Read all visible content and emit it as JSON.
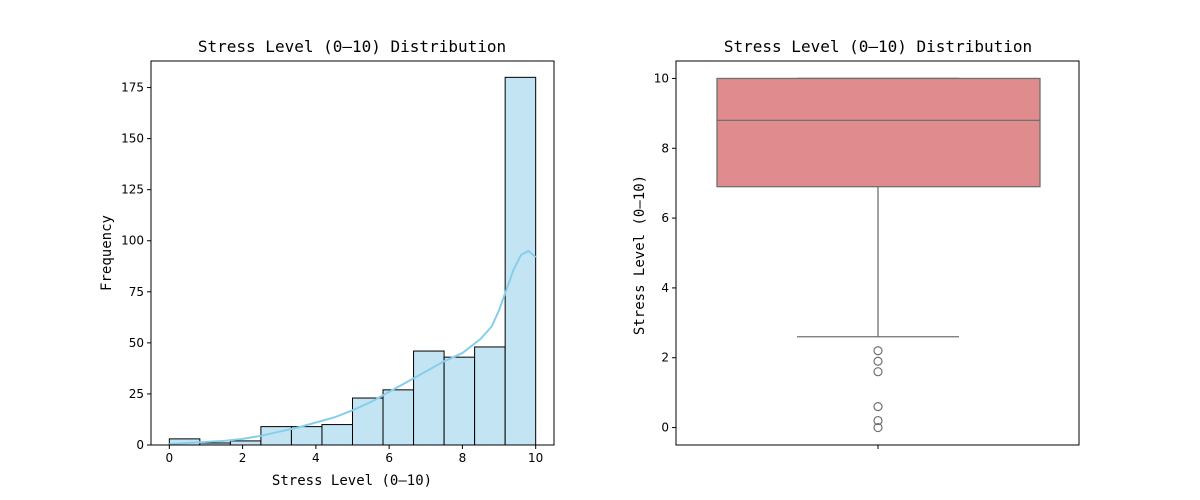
{
  "colors": {
    "hist_bar_fill": "#c3e5f3",
    "hist_bar_edge": "#000000",
    "kde_line": "#87ceeb",
    "box_fill": "#e08b8d",
    "box_line": "#707070",
    "axes": "#000000"
  },
  "chart_data": [
    {
      "type": "bar",
      "subtype": "histogram_with_kde",
      "title": "Stress Level (0–10) Distribution",
      "xlabel": "Stress Level (0–10)",
      "ylabel": "Frequency",
      "xlim": [
        -0.5,
        10.5
      ],
      "ylim": [
        0,
        188
      ],
      "xticks": [
        0,
        2,
        4,
        6,
        8,
        10
      ],
      "yticks": [
        0,
        25,
        50,
        75,
        100,
        125,
        150,
        175
      ],
      "bins": [
        {
          "x0": 0.0,
          "x1": 0.8333,
          "count": 3
        },
        {
          "x0": 0.8333,
          "x1": 1.6667,
          "count": 1
        },
        {
          "x0": 1.6667,
          "x1": 2.5,
          "count": 2
        },
        {
          "x0": 2.5,
          "x1": 3.3333,
          "count": 9
        },
        {
          "x0": 3.3333,
          "x1": 4.1667,
          "count": 9
        },
        {
          "x0": 4.1667,
          "x1": 5.0,
          "count": 10
        },
        {
          "x0": 5.0,
          "x1": 5.8333,
          "count": 23
        },
        {
          "x0": 5.8333,
          "x1": 6.6667,
          "count": 27
        },
        {
          "x0": 6.6667,
          "x1": 7.5,
          "count": 46
        },
        {
          "x0": 7.5,
          "x1": 8.3333,
          "count": 43
        },
        {
          "x0": 8.3333,
          "x1": 9.1667,
          "count": 48
        },
        {
          "x0": 9.1667,
          "x1": 10.0,
          "count": 180
        }
      ],
      "kde": {
        "x": [
          0,
          0.5,
          1,
          1.5,
          2,
          2.5,
          3,
          3.5,
          4,
          4.5,
          5,
          5.5,
          6,
          6.5,
          7,
          7.5,
          8,
          8.5,
          8.8,
          9.0,
          9.2,
          9.4,
          9.6,
          9.8,
          10
        ],
        "y": [
          0.5,
          1,
          1.5,
          2,
          3,
          4.5,
          6.5,
          8.5,
          11,
          13.5,
          17,
          21,
          26,
          31,
          36,
          41,
          45,
          52,
          58,
          66,
          76,
          86,
          93,
          95,
          92
        ]
      },
      "grid": false
    },
    {
      "type": "box",
      "title": "Stress Level (0–10) Distribution",
      "xlabel": "",
      "ylabel": "Stress Level (0–10)",
      "ylim": [
        -0.5,
        10.5
      ],
      "yticks": [
        0,
        2,
        4,
        6,
        8,
        10
      ],
      "stats": {
        "whisker_low": 2.6,
        "q1": 6.9,
        "median": 8.8,
        "q3": 10.0,
        "whisker_high": 10.0
      },
      "outliers": [
        2.2,
        1.9,
        1.6,
        0.6,
        0.2,
        0.0
      ],
      "grid": false
    }
  ]
}
